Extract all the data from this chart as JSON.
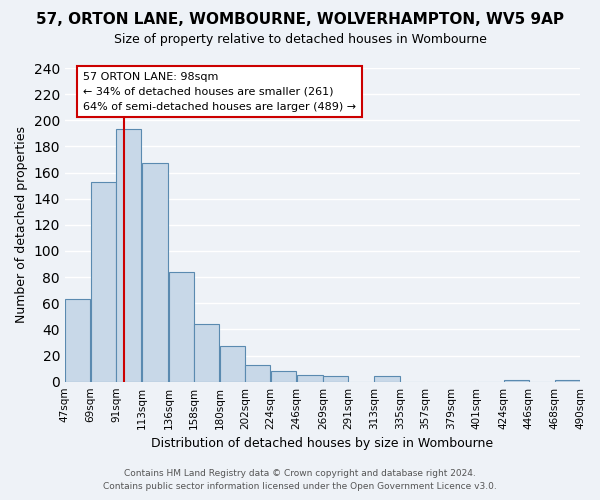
{
  "title": "57, ORTON LANE, WOMBOURNE, WOLVERHAMPTON, WV5 9AP",
  "subtitle": "Size of property relative to detached houses in Wombourne",
  "xlabel": "Distribution of detached houses by size in Wombourne",
  "ylabel": "Number of detached properties",
  "bar_color": "#c8d8e8",
  "bar_edge_color": "#5a8ab0",
  "marker_line_color": "#cc0000",
  "marker_value": 98,
  "bin_edges": [
    47,
    69,
    91,
    113,
    136,
    158,
    180,
    202,
    224,
    246,
    269,
    291,
    313,
    335,
    357,
    379,
    401,
    424,
    446,
    468,
    490
  ],
  "bin_labels": [
    "47sqm",
    "69sqm",
    "91sqm",
    "113sqm",
    "136sqm",
    "158sqm",
    "180sqm",
    "202sqm",
    "224sqm",
    "246sqm",
    "269sqm",
    "291sqm",
    "313sqm",
    "335sqm",
    "357sqm",
    "379sqm",
    "401sqm",
    "424sqm",
    "446sqm",
    "468sqm",
    "490sqm"
  ],
  "counts": [
    63,
    153,
    193,
    167,
    84,
    44,
    27,
    13,
    8,
    5,
    4,
    0,
    4,
    0,
    0,
    0,
    0,
    1,
    0,
    1
  ],
  "ylim": [
    0,
    240
  ],
  "yticks": [
    0,
    20,
    40,
    60,
    80,
    100,
    120,
    140,
    160,
    180,
    200,
    220,
    240
  ],
  "annotation_title": "57 ORTON LANE: 98sqm",
  "annotation_line1": "← 34% of detached houses are smaller (261)",
  "annotation_line2": "64% of semi-detached houses are larger (489) →",
  "annotation_box_color": "#ffffff",
  "annotation_box_edge": "#cc0000",
  "footer_line1": "Contains HM Land Registry data © Crown copyright and database right 2024.",
  "footer_line2": "Contains public sector information licensed under the Open Government Licence v3.0.",
  "bg_color": "#eef2f7",
  "grid_color": "#ffffff"
}
